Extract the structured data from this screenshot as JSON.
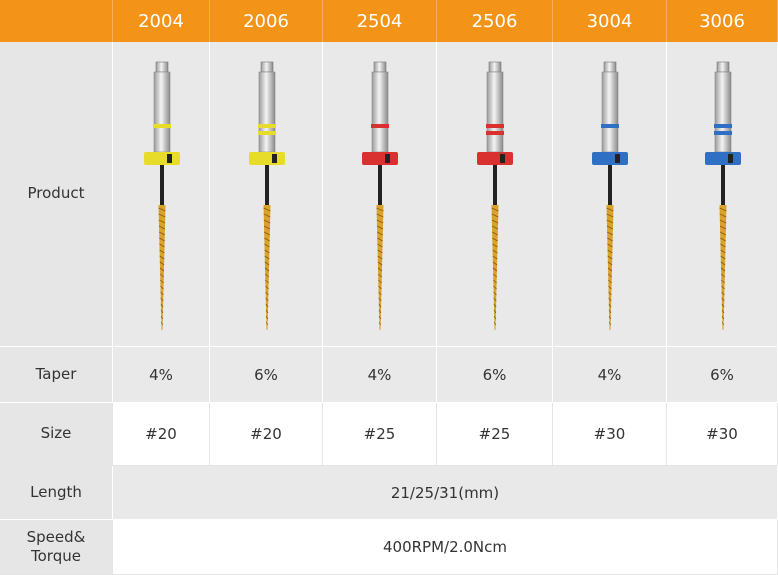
{
  "header": {
    "columns": [
      "2004",
      "2006",
      "2504",
      "2506",
      "3004",
      "3006"
    ]
  },
  "products": [
    {
      "color": "#e8dc2a",
      "rings": 1
    },
    {
      "color": "#e8dc2a",
      "rings": 2
    },
    {
      "color": "#d8312f",
      "rings": 1
    },
    {
      "color": "#d8312f",
      "rings": 2
    },
    {
      "color": "#2f6fc4",
      "rings": 1
    },
    {
      "color": "#2f6fc4",
      "rings": 2
    }
  ],
  "rows": [
    {
      "label": "Product"
    },
    {
      "label": "Taper",
      "values": [
        "4%",
        "6%",
        "4%",
        "6%",
        "4%",
        "6%"
      ]
    },
    {
      "label": "Size",
      "values": [
        "#20",
        "#20",
        "#25",
        "#25",
        "#30",
        "#30"
      ]
    },
    {
      "label": "Length",
      "value": "21/25/31(mm)"
    },
    {
      "label": "Speed& Torque",
      "value": "400RPM/2.0Ncm"
    }
  ]
}
